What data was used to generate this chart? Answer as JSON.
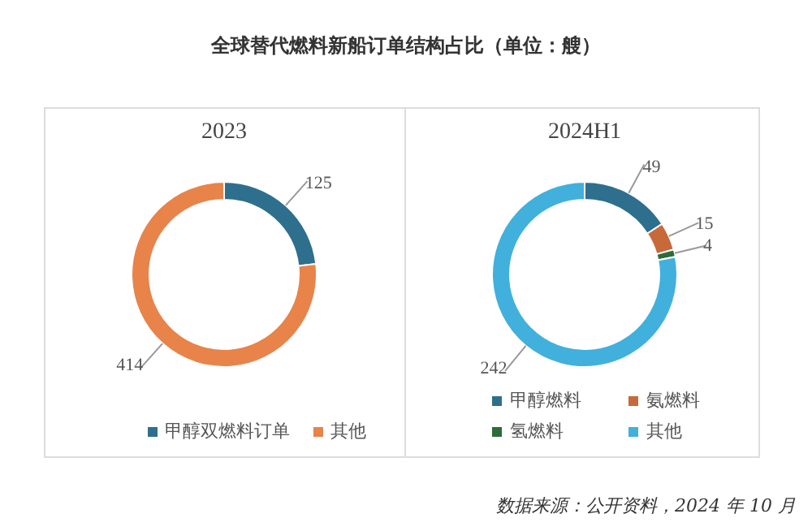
{
  "chart_data": [
    {
      "type": "donut",
      "title": "全球替代燃料新船订单结构占比（单位：艘）",
      "subtitle": "2023",
      "categories": [
        "甲醇双燃料订单",
        "其他"
      ],
      "values": [
        125,
        414
      ],
      "colors": [
        "#2e6f8e",
        "#e8834a"
      ],
      "data_labels": true,
      "legend": "bottom"
    },
    {
      "type": "donut",
      "title": "2024H1",
      "categories": [
        "甲醇燃料",
        "氨燃料",
        "氢燃料",
        "其他"
      ],
      "values": [
        49,
        15,
        4,
        242
      ],
      "colors": [
        "#2e6f8e",
        "#c8693a",
        "#2d6b3a",
        "#41b0dc"
      ],
      "data_labels": true,
      "legend": "bottom",
      "annotations": [
        "数据来源：公开资料，2024 年 10 月"
      ]
    }
  ]
}
